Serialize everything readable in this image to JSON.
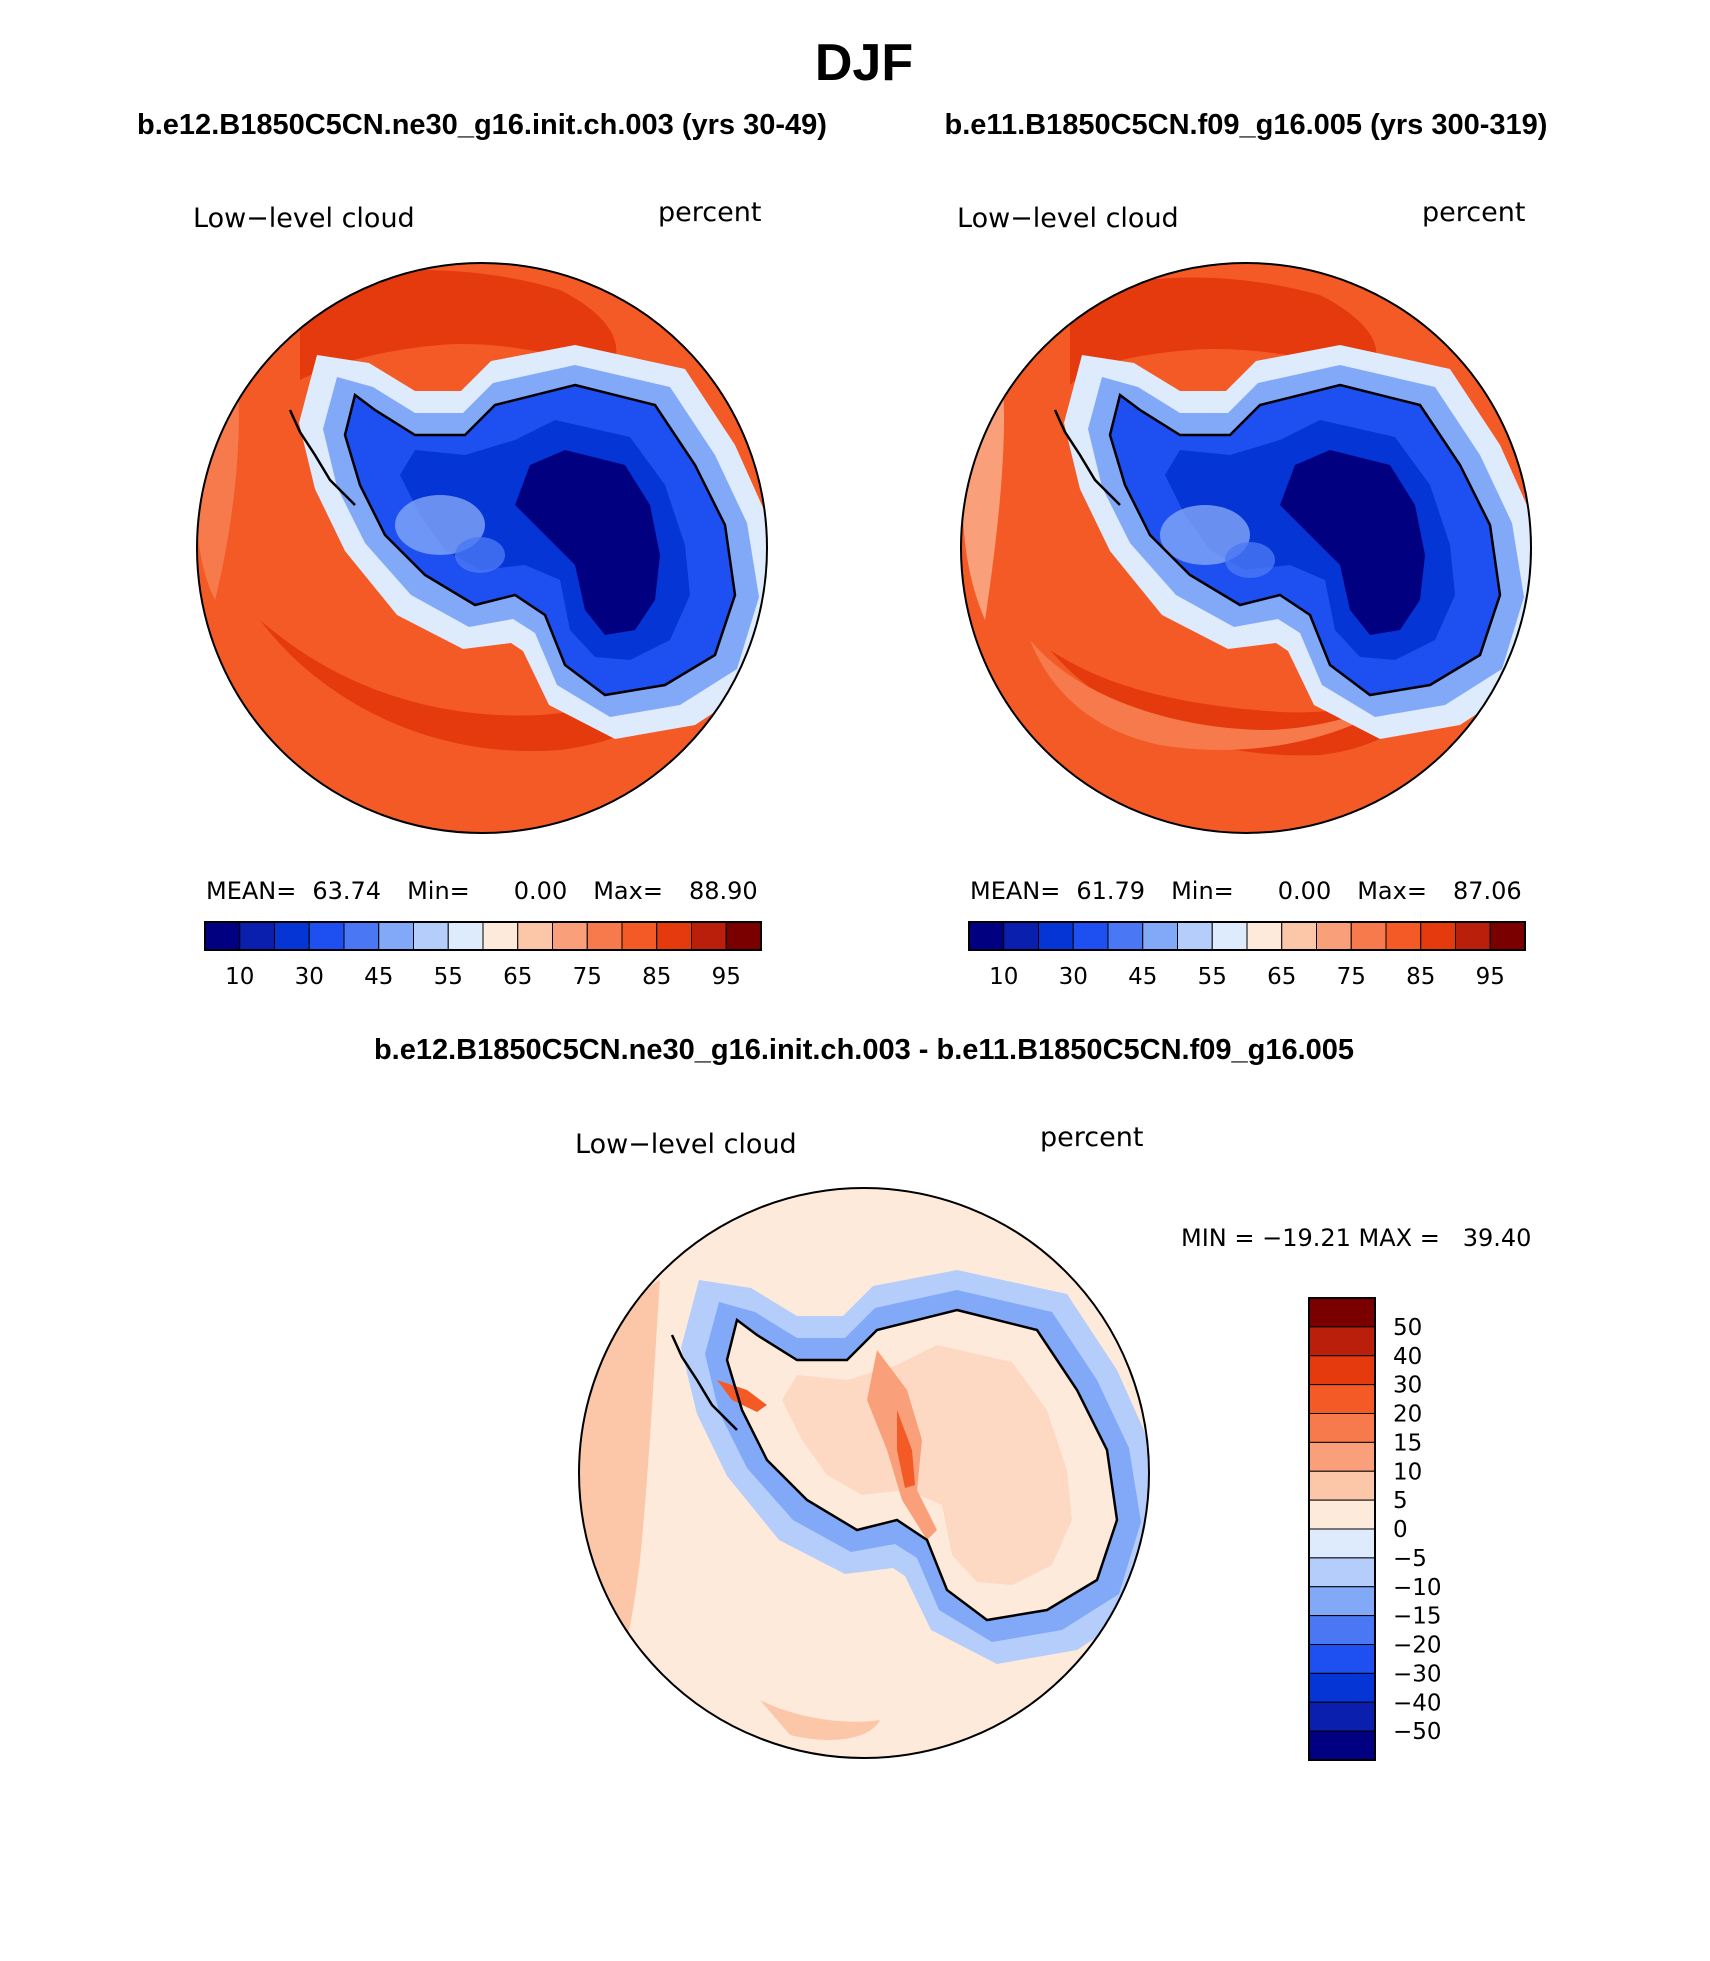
{
  "page": {
    "title": "DJF"
  },
  "panels": [
    {
      "case_title": "b.e12.B1850C5CN.ne30_g16.init.ch.003 (yrs 30-49)",
      "left_label": "Low−level cloud",
      "right_label": "percent",
      "stats": {
        "mean_label": "MEAN=",
        "mean": "63.74",
        "min_label": "Min=",
        "min": "0.00",
        "max_label": "Max=",
        "max": "88.90"
      }
    },
    {
      "case_title": "b.e11.B1850C5CN.f09_g16.005 (yrs 300-319)",
      "left_label": "Low−level cloud",
      "right_label": "percent",
      "stats": {
        "mean_label": "MEAN=",
        "mean": "61.79",
        "min_label": "Min=",
        "min": "0.00",
        "max_label": "Max=",
        "max": "87.06"
      }
    }
  ],
  "diff_panel": {
    "case_title": "b.e12.B1850C5CN.ne30_g16.init.ch.003 - b.e11.B1850C5CN.f09_g16.005",
    "left_label": "Low−level cloud",
    "right_label": "percent",
    "minmax_text": "MIN = −19.21 MAX =   39.40"
  },
  "colorbars": {
    "abs": {
      "colors": [
        "#000080",
        "#0a1fae",
        "#0535d4",
        "#1e4ff0",
        "#4a78f5",
        "#82a8f8",
        "#b4cdfa",
        "#deebfd",
        "#feeadb",
        "#fcc6a8",
        "#f9a07a",
        "#f67a4c",
        "#f45a26",
        "#e43a0e",
        "#b91f0a",
        "#7a0000"
      ],
      "tick_labels": [
        "10",
        "30",
        "45",
        "55",
        "65",
        "75",
        "85",
        "95"
      ]
    },
    "diff": {
      "colors": [
        "#000080",
        "#0a1fae",
        "#0535d4",
        "#1e4ff0",
        "#4a78f5",
        "#82a8f8",
        "#b4cdfa",
        "#deebfd",
        "#feeadb",
        "#fcc6a8",
        "#f9a07a",
        "#f67a4c",
        "#f45a26",
        "#e43a0e",
        "#b91f0a",
        "#7a0000"
      ],
      "tick_labels": [
        "50",
        "40",
        "30",
        "20",
        "15",
        "10",
        "5",
        "0",
        "−5",
        "−10",
        "−15",
        "−20",
        "−30",
        "−40",
        "−50"
      ]
    }
  },
  "map_colors": {
    "ocean_high": "#f45a26",
    "ocean_very_high": "#e43a0e",
    "ocean_mid": "#f67a4c",
    "ocean_low": "#f9a07a",
    "ice_deep": "#000080",
    "ice_dark": "#0a1fae",
    "ice_mid": "#0535d4",
    "ice_light": "#1e4ff0",
    "ice_pale": "#4a78f5",
    "edge_pale": "#82a8f8",
    "edge_white": "#deebfd",
    "diff_bg": "#feeadb",
    "diff_pos": "#fcc6a8",
    "diff_posmid": "#f9a07a",
    "diff_posstrong": "#f45a26",
    "diff_neg1": "#deebfd",
    "diff_neg2": "#b4cdfa",
    "diff_neg3": "#82a8f8",
    "diff_neg4": "#4a78f5",
    "coast": "#000000"
  }
}
